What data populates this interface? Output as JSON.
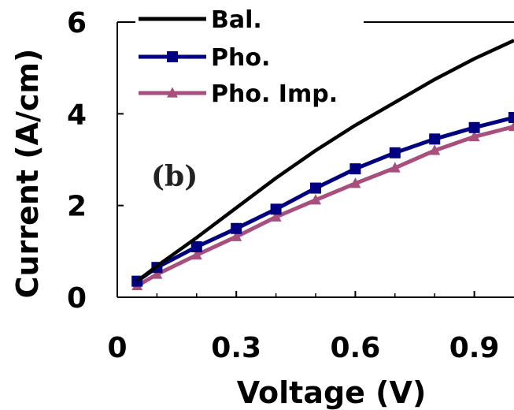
{
  "chart_data": {
    "type": "line",
    "xlabel": "Voltage (V)",
    "ylabel": "Current (A/cm)",
    "xlim": [
      0,
      1.0
    ],
    "ylim": [
      0,
      6
    ],
    "x_ticks": [
      "0",
      "0.3",
      "0.6",
      "0.9"
    ],
    "x_tick_values": [
      0,
      0.3,
      0.6,
      0.9
    ],
    "y_ticks": [
      "0",
      "2",
      "4",
      "6"
    ],
    "y_tick_values": [
      0,
      2,
      4,
      6
    ],
    "grid": false,
    "legend_position": "top",
    "annotation": "(b)",
    "series": [
      {
        "name": "Bal.",
        "color": "#000000",
        "marker": "none",
        "x": [
          0.05,
          0.1,
          0.2,
          0.3,
          0.4,
          0.5,
          0.6,
          0.65,
          0.7,
          0.8,
          0.9,
          1.0
        ],
        "y": [
          0.35,
          0.68,
          1.3,
          1.95,
          2.6,
          3.2,
          3.75,
          4.0,
          4.25,
          4.75,
          5.2,
          5.6
        ]
      },
      {
        "name": "Pho.",
        "color": "#000080",
        "marker": "square",
        "x": [
          0.05,
          0.1,
          0.2,
          0.3,
          0.4,
          0.5,
          0.6,
          0.7,
          0.8,
          0.9,
          1.0
        ],
        "y": [
          0.35,
          0.65,
          1.1,
          1.5,
          1.92,
          2.38,
          2.8,
          3.15,
          3.45,
          3.7,
          3.92
        ]
      },
      {
        "name": "Pho. Imp.",
        "color": "#a84f7e",
        "marker": "triangle",
        "x": [
          0.05,
          0.1,
          0.2,
          0.3,
          0.4,
          0.5,
          0.6,
          0.7,
          0.8,
          0.9,
          1.0
        ],
        "y": [
          0.25,
          0.5,
          0.92,
          1.32,
          1.75,
          2.12,
          2.48,
          2.82,
          3.2,
          3.5,
          3.72
        ]
      }
    ]
  }
}
